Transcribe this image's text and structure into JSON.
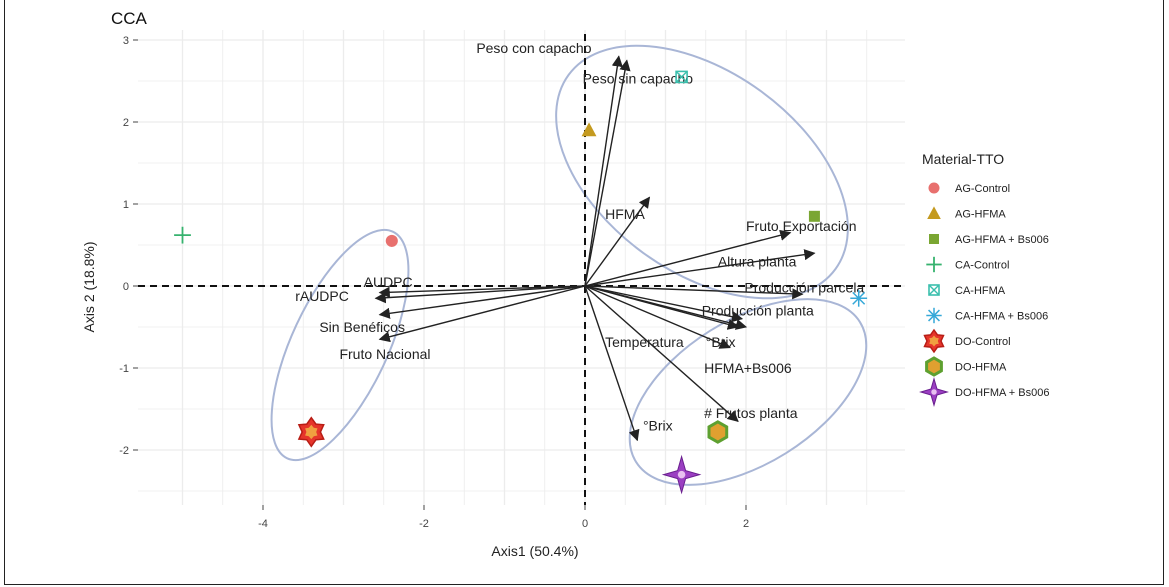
{
  "chart_data": {
    "type": "scatter",
    "title": "CCA",
    "xlabel": "Axis1 (50.4%)",
    "ylabel": "Axis 2 (18.8%)",
    "xlim": [
      -5.3,
      3.7
    ],
    "ylim": [
      -2.7,
      3.15
    ],
    "x_ticks": [
      -4,
      -2,
      0,
      2
    ],
    "y_ticks": [
      3,
      2,
      1,
      0,
      -1,
      -2
    ],
    "grid": true,
    "reference_lines": {
      "x": 0,
      "y": 0,
      "style": "dashed"
    },
    "series": [
      {
        "name": "AG-Control",
        "marker": "circle",
        "color": "#e8706e",
        "x": [
          -2.4
        ],
        "y": [
          0.55
        ]
      },
      {
        "name": "AG-HFMA",
        "marker": "triangle",
        "color": "#c49a1f",
        "x": [
          0.05
        ],
        "y": [
          1.9
        ]
      },
      {
        "name": "AG-HFMA + Bs006",
        "marker": "square",
        "color": "#7aa632",
        "x": [
          2.85
        ],
        "y": [
          0.85
        ]
      },
      {
        "name": "CA-Control",
        "marker": "plus",
        "color": "#36b26e",
        "x": [
          -5.0
        ],
        "y": [
          0.62
        ]
      },
      {
        "name": "CA-HFMA",
        "marker": "boxed-x",
        "color": "#3bbfad",
        "x": [
          1.2
        ],
        "y": [
          2.55
        ]
      },
      {
        "name": "CA-HFMA + Bs006",
        "marker": "asterisk",
        "color": "#36a8d8",
        "x": [
          3.4
        ],
        "y": [
          -0.15
        ]
      },
      {
        "name": "DO-Control",
        "marker": "star",
        "color": "#e6352b",
        "x": [
          -3.4
        ],
        "y": [
          -1.78
        ]
      },
      {
        "name": "DO-HFMA",
        "marker": "hexagon",
        "color": "#5ea030",
        "x": [
          1.65
        ],
        "y": [
          -1.78
        ]
      },
      {
        "name": "DO-HFMA + Bs006",
        "marker": "diamond-star",
        "color": "#9b3fc2",
        "x": [
          1.2
        ],
        "y": [
          -2.3
        ]
      }
    ],
    "vectors": [
      {
        "label": "Peso con capacho",
        "x": 0.42,
        "y": 2.8,
        "lx": -1.35,
        "ly": 2.9
      },
      {
        "label": "Peso sin capacho",
        "x": 0.52,
        "y": 2.75,
        "lx": -0.03,
        "ly": 2.53
      },
      {
        "label": "HFMA",
        "x": 0.8,
        "y": 1.08,
        "lx": 0.25,
        "ly": 0.88
      },
      {
        "label": "Fruto Exportación",
        "x": 2.55,
        "y": 0.65,
        "lx": 2.0,
        "ly": 0.73
      },
      {
        "label": "Altura planta",
        "x": 2.85,
        "y": 0.4,
        "lx": 1.65,
        "ly": 0.3
      },
      {
        "label": "Producción parcela",
        "x": 2.7,
        "y": -0.1,
        "lx": 1.98,
        "ly": -0.02
      },
      {
        "label": "Producción planta",
        "x": 2.0,
        "y": -0.5,
        "lx": 1.45,
        "ly": -0.3
      },
      {
        "label": "Temperatura",
        "x": 1.95,
        "y": -0.4,
        "lx": 0.25,
        "ly": -0.68
      },
      {
        "label": "°Brix",
        "x": 1.9,
        "y": -0.5,
        "lx": 1.5,
        "ly": -0.68
      },
      {
        "label": "HFMA+Bs006",
        "x": 1.8,
        "y": -0.75,
        "lx": 1.48,
        "ly": -1.0
      },
      {
        "label": "# Frutos planta",
        "x": 1.9,
        "y": -1.65,
        "lx": 1.48,
        "ly": -1.55
      },
      {
        "label": "°Brix",
        "x": 0.65,
        "y": -1.88,
        "lx": 0.72,
        "ly": -1.7
      },
      {
        "label": "AUDPC",
        "x": -2.55,
        "y": -0.08,
        "lx": -2.75,
        "ly": 0.05
      },
      {
        "label": "rAUDPC",
        "x": -2.6,
        "y": -0.15,
        "lx": -3.6,
        "ly": -0.12
      },
      {
        "label": "Sin Benéficos",
        "x": -2.55,
        "y": -0.35,
        "lx": -3.3,
        "ly": -0.5
      },
      {
        "label": "Fruto Nacional",
        "x": -2.55,
        "y": -0.65,
        "lx": -3.05,
        "ly": -0.83
      }
    ],
    "legend": {
      "title": "Material-TTO",
      "placement": "right",
      "entries": [
        "AG-Control",
        "AG-HFMA",
        "AG-HFMA + Bs006",
        "CA-Control",
        "CA-HFMA",
        "CA-HFMA + Bs006",
        "DO-Control",
        "DO-HFMA",
        "DO-HFMA + Bs006"
      ]
    }
  }
}
